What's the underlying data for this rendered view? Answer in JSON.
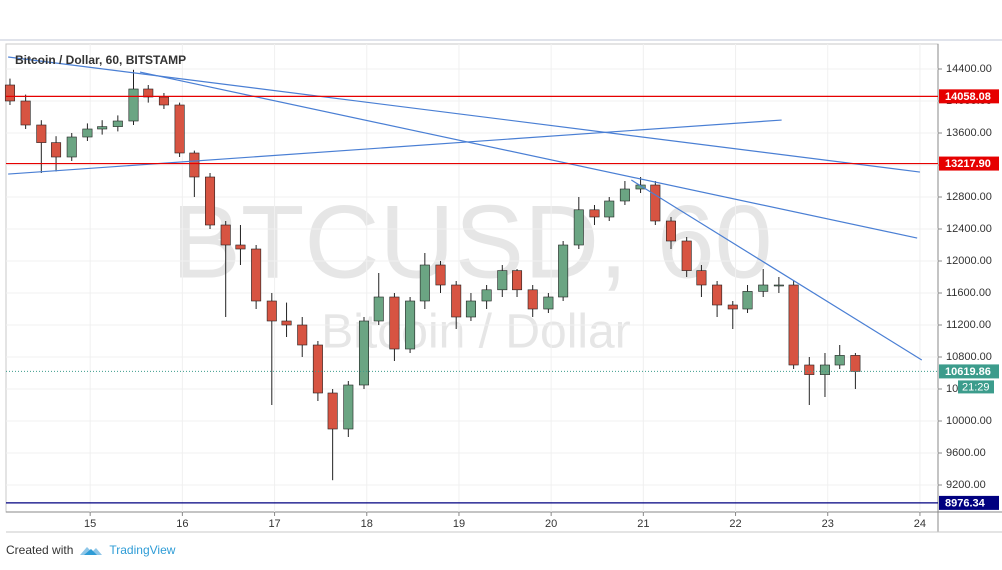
{
  "chart_data": {
    "type": "candlestick",
    "title": "Bitcoin / Dollar, 60, BITSTAMP",
    "watermark": "BTCUSD, 60",
    "watermark_sub": "Bitcoin / Dollar",
    "up_color": "#6ba583",
    "down_color": "#d75442",
    "x": [
      14.13,
      14.3,
      14.47,
      14.63,
      14.8,
      14.97,
      15.13,
      15.3,
      15.47,
      15.63,
      15.8,
      15.97,
      16.13,
      16.3,
      16.47,
      16.63,
      16.8,
      16.97,
      17.13,
      17.3,
      17.47,
      17.63,
      17.8,
      17.97,
      18.13,
      18.3,
      18.47,
      18.63,
      18.8,
      18.97,
      19.13,
      19.3,
      19.47,
      19.63,
      19.8,
      19.97,
      20.13,
      20.3,
      20.47,
      20.63,
      20.8,
      20.97,
      21.13,
      21.3,
      21.47,
      21.63,
      21.8,
      21.97,
      22.13,
      22.3,
      22.47,
      22.63,
      22.8,
      22.97,
      23.13,
      23.3
    ],
    "open": [
      14200,
      14000,
      13700,
      13480,
      13300,
      13550,
      13650,
      13680,
      13750,
      14150,
      14050,
      13950,
      13350,
      13050,
      12450,
      12200,
      12150,
      11500,
      11250,
      11200,
      10950,
      10350,
      9900,
      10450,
      11250,
      11550,
      10900,
      11500,
      11950,
      11700,
      11300,
      11500,
      11640,
      11880,
      11640,
      11400,
      11550,
      12200,
      12640,
      12550,
      12750,
      12900,
      12950,
      12500,
      12250,
      11880,
      11700,
      11450,
      11400,
      11620,
      11700,
      11700,
      10700,
      10580,
      10700,
      10820
    ],
    "high": [
      14280,
      14080,
      13760,
      13560,
      13600,
      13720,
      13760,
      13820,
      14390,
      14200,
      14100,
      13980,
      13380,
      13100,
      12500,
      12450,
      12200,
      11600,
      11480,
      11300,
      11000,
      10400,
      10500,
      11300,
      11850,
      11600,
      11550,
      12100,
      12000,
      11750,
      11600,
      11700,
      11950,
      11900,
      11700,
      11600,
      12250,
      12800,
      12700,
      12800,
      13000,
      13050,
      13000,
      12550,
      12300,
      11950,
      11750,
      11500,
      11700,
      11900,
      11800,
      11750,
      10800,
      10850,
      10950,
      10850
    ],
    "low": [
      13950,
      13650,
      13100,
      13120,
      13250,
      13500,
      13580,
      13620,
      13700,
      13980,
      13900,
      13300,
      12800,
      12400,
      11300,
      11950,
      11400,
      10200,
      11050,
      10800,
      10250,
      9260,
      9800,
      10400,
      11200,
      10750,
      10850,
      11400,
      11600,
      11150,
      11250,
      11400,
      11550,
      11550,
      11300,
      11350,
      11500,
      12150,
      12450,
      12500,
      12700,
      12850,
      12450,
      12150,
      11800,
      11550,
      11300,
      11150,
      11350,
      11550,
      11600,
      10650,
      10200,
      10300,
      10650,
      10400
    ],
    "close": [
      14000,
      13700,
      13480,
      13300,
      13550,
      13650,
      13680,
      13750,
      14150,
      14050,
      13950,
      13350,
      13050,
      12450,
      12200,
      12150,
      11500,
      11250,
      11200,
      10950,
      10350,
      9900,
      10450,
      11250,
      11550,
      10900,
      11500,
      11950,
      11700,
      11300,
      11500,
      11640,
      11880,
      11640,
      11400,
      11550,
      12200,
      12640,
      12550,
      12750,
      12900,
      12950,
      12500,
      12250,
      11880,
      11700,
      11450,
      11400,
      11620,
      11700,
      11700,
      10700,
      10580,
      10700,
      10820,
      10620
    ],
    "xlim": [
      14.087,
      24.196
    ],
    "ylim": [
      8862.5,
      14712.5
    ],
    "xticks": [
      15,
      16,
      17,
      18,
      19,
      20,
      21,
      22,
      23,
      24
    ],
    "yticks": [
      {
        "value": 9200,
        "label": "9200.00"
      },
      {
        "value": 9600,
        "label": "9600.00"
      },
      {
        "value": 10000,
        "label": "10000.00"
      },
      {
        "value": 10400,
        "label": "10400.00"
      },
      {
        "value": 10800,
        "label": "10800.00"
      },
      {
        "value": 11200,
        "label": "11200.00"
      },
      {
        "value": 11600,
        "label": "11600.00"
      },
      {
        "value": 12000,
        "label": "12000.00"
      },
      {
        "value": 12400,
        "label": "12400.00"
      },
      {
        "value": 12800,
        "label": "12800.00"
      },
      {
        "value": 13200,
        "label": "13200.00"
      },
      {
        "value": 13600,
        "label": "13600.00"
      },
      {
        "value": 14000,
        "label": "14000.00"
      },
      {
        "value": 14400,
        "label": "14400.00"
      }
    ],
    "levels": [
      {
        "value": 14058.08,
        "label": "14058.08",
        "color": "#e60000"
      },
      {
        "value": 13217.9,
        "label": "13217.90",
        "color": "#e60000"
      },
      {
        "value": 8976.34,
        "label": "8976.34",
        "color": "#000080"
      }
    ],
    "last_price": {
      "value": 10619.86,
      "label": "10619.86",
      "countdown": "21:29",
      "color": "#3c9c8c"
    },
    "trendline_color": "#4a7fd4",
    "trendlines": [
      {
        "x": [
          14.11,
          24.0
        ],
        "y": [
          14550,
          13112
        ]
      },
      {
        "x": [
          15.54,
          23.97
        ],
        "y": [
          14362,
          12287
        ]
      },
      {
        "x": [
          14.11,
          22.5
        ],
        "y": [
          13087,
          13762
        ]
      },
      {
        "x": [
          20.87,
          24.02
        ],
        "y": [
          13012,
          10762
        ]
      }
    ]
  },
  "footer": {
    "created_with": "Created with",
    "brand": "TradingView"
  }
}
